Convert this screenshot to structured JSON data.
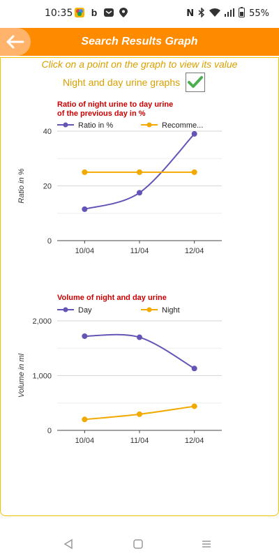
{
  "status_bar": {
    "time": "10:35",
    "battery": "55%",
    "left_icons": [
      "photos-icon",
      "bing-icon",
      "mail-icon",
      "location-icon"
    ],
    "right_icons": [
      "nfc-icon",
      "bluetooth-icon",
      "wifi-icon",
      "signal-icon",
      "battery-icon"
    ]
  },
  "header": {
    "title": "Search Results Graph",
    "back_icon": "arrow-left-icon"
  },
  "hint": "Click on a point on the graph to view its value",
  "toggle": {
    "label": "Night and day urine graphs",
    "checked": true
  },
  "charts": [
    {
      "chart_data": {
        "type": "line",
        "title_lines": [
          "Ratio of night urine to day urine",
          "of the previous day in %"
        ],
        "ylabel": "Ratio in %",
        "xlabel": "",
        "categories": [
          "10/04",
          "11/04",
          "12/04"
        ],
        "ylim": [
          0,
          40
        ],
        "yticks": [
          0,
          20,
          40
        ],
        "ytick_labels": [
          "0",
          "20",
          "40"
        ],
        "grid": true,
        "legend_position": "top",
        "series": [
          {
            "name": "Ratio in %",
            "values": [
              11.5,
              17.5,
              39
            ],
            "color": "#6355b5",
            "smooth": true
          },
          {
            "name": "Recomme...",
            "values": [
              25,
              25,
              25
            ],
            "color": "#f2a900",
            "smooth": false
          }
        ]
      }
    },
    {
      "chart_data": {
        "type": "line",
        "title_lines": [
          "Volume of night and day urine"
        ],
        "ylabel": "Volume in ml",
        "xlabel": "",
        "categories": [
          "10/04",
          "11/04",
          "12/04"
        ],
        "ylim": [
          0,
          2000
        ],
        "yticks": [
          0,
          1000,
          2000
        ],
        "ytick_labels": [
          "0",
          "1,000",
          "2,000"
        ],
        "grid": true,
        "legend_position": "top",
        "series": [
          {
            "name": "Day",
            "values": [
              1720,
              1700,
              1130
            ],
            "color": "#6355b5",
            "smooth": true
          },
          {
            "name": "Night",
            "values": [
              200,
              295,
              440
            ],
            "color": "#f2a900",
            "smooth": true
          }
        ]
      }
    }
  ],
  "colors": {
    "accent": "#fe8a00",
    "hint_text": "#d9a000",
    "chart_title": "#cc0000",
    "border": "#f2c200"
  },
  "nav": {
    "back": "back-triangle-icon",
    "home": "home-square-icon",
    "recents": "recents-lines-icon"
  }
}
